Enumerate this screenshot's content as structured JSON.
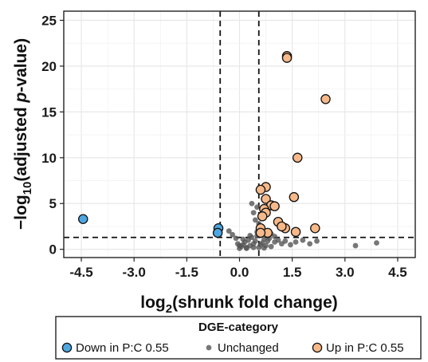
{
  "chart_data": {
    "type": "scatter",
    "xlabel": "log2(shrunk fold change)",
    "ylabel": "-log10(adjusted p-value)",
    "xlim": [
      -5.0,
      5.0
    ],
    "ylim": [
      -0.9,
      26.0
    ],
    "x_ticks": [
      "-4.5",
      "-3.0",
      "-1.5",
      "0.0",
      "1.5",
      "3.0",
      "4.5"
    ],
    "x_tick_values": [
      -4.5,
      -3.0,
      -1.5,
      0.0,
      1.5,
      3.0,
      4.5
    ],
    "y_ticks": [
      "0",
      "5",
      "10",
      "15",
      "20",
      "25"
    ],
    "y_tick_values": [
      0,
      5,
      10,
      15,
      20,
      25
    ],
    "grid": true,
    "reference_lines": {
      "vertical": [
        -0.55,
        0.55
      ],
      "horizontal": [
        1.3
      ],
      "style": "dashed"
    },
    "legend": {
      "title": "DGE-category",
      "position": "bottom",
      "entries": [
        "Down in P:C 0.55",
        "Unchanged",
        "Up in P:C 0.55"
      ]
    },
    "colors": {
      "down": "#4da6e0",
      "unchanged": "#555555",
      "up": "#f7b98a"
    },
    "series": [
      {
        "name": "Down in P:C 0.55",
        "points": [
          [
            -4.45,
            3.3
          ],
          [
            -0.6,
            2.3
          ],
          [
            -0.62,
            1.8
          ]
        ]
      },
      {
        "name": "Unchanged",
        "points": [
          [
            -0.3,
            2.0
          ],
          [
            -0.2,
            1.6
          ],
          [
            -0.1,
            1.2
          ],
          [
            0.0,
            0.1
          ],
          [
            0.05,
            0.3
          ],
          [
            0.1,
            0.5
          ],
          [
            0.15,
            0.8
          ],
          [
            0.2,
            0.2
          ],
          [
            0.25,
            1.0
          ],
          [
            0.3,
            0.4
          ],
          [
            0.35,
            1.3
          ],
          [
            0.4,
            0.6
          ],
          [
            0.45,
            0.9
          ],
          [
            0.5,
            1.5
          ],
          [
            0.55,
            0.2
          ],
          [
            0.6,
            1.8
          ],
          [
            0.65,
            0.7
          ],
          [
            0.7,
            1.1
          ],
          [
            0.75,
            0.4
          ],
          [
            0.8,
            0.9
          ],
          [
            0.85,
            1.2
          ],
          [
            0.9,
            0.3
          ],
          [
            1.0,
            0.8
          ],
          [
            1.1,
            1.0
          ],
          [
            1.2,
            0.6
          ],
          [
            1.3,
            0.9
          ],
          [
            1.45,
            0.5
          ],
          [
            1.6,
            0.8
          ],
          [
            1.8,
            1.0
          ],
          [
            2.0,
            0.6
          ],
          [
            0.35,
            5.0
          ],
          [
            0.4,
            4.0
          ],
          [
            0.45,
            3.2
          ],
          [
            0.5,
            4.6
          ],
          [
            0.55,
            2.8
          ],
          [
            0.6,
            3.6
          ],
          [
            0.5,
            1.9
          ],
          [
            0.3,
            1.5
          ],
          [
            0.1,
            1.1
          ],
          [
            -0.05,
            0.6
          ],
          [
            0.2,
            0.1
          ],
          [
            0.4,
            0.2
          ],
          [
            0.6,
            0.5
          ],
          [
            0.0,
            0.4
          ],
          [
            0.7,
            0.15
          ],
          [
            3.3,
            0.4
          ],
          [
            3.9,
            0.7
          ],
          [
            2.2,
            0.9
          ],
          [
            1.0,
            1.4
          ],
          [
            0.9,
            1.7
          ]
        ]
      },
      {
        "name": "Up in P:C 0.55",
        "points": [
          [
            1.35,
            21.1
          ],
          [
            1.35,
            20.9
          ],
          [
            2.45,
            16.4
          ],
          [
            1.65,
            10.0
          ],
          [
            0.75,
            6.8
          ],
          [
            0.6,
            6.5
          ],
          [
            1.55,
            5.7
          ],
          [
            0.75,
            5.5
          ],
          [
            0.9,
            4.8
          ],
          [
            0.7,
            4.4
          ],
          [
            0.75,
            4.0
          ],
          [
            0.65,
            3.6
          ],
          [
            1.0,
            4.7
          ],
          [
            1.1,
            3.0
          ],
          [
            1.3,
            2.3
          ],
          [
            1.6,
            1.9
          ],
          [
            2.15,
            2.3
          ],
          [
            0.6,
            2.3
          ],
          [
            0.8,
            1.8
          ],
          [
            0.6,
            1.8
          ],
          [
            1.2,
            2.5
          ]
        ]
      }
    ]
  }
}
